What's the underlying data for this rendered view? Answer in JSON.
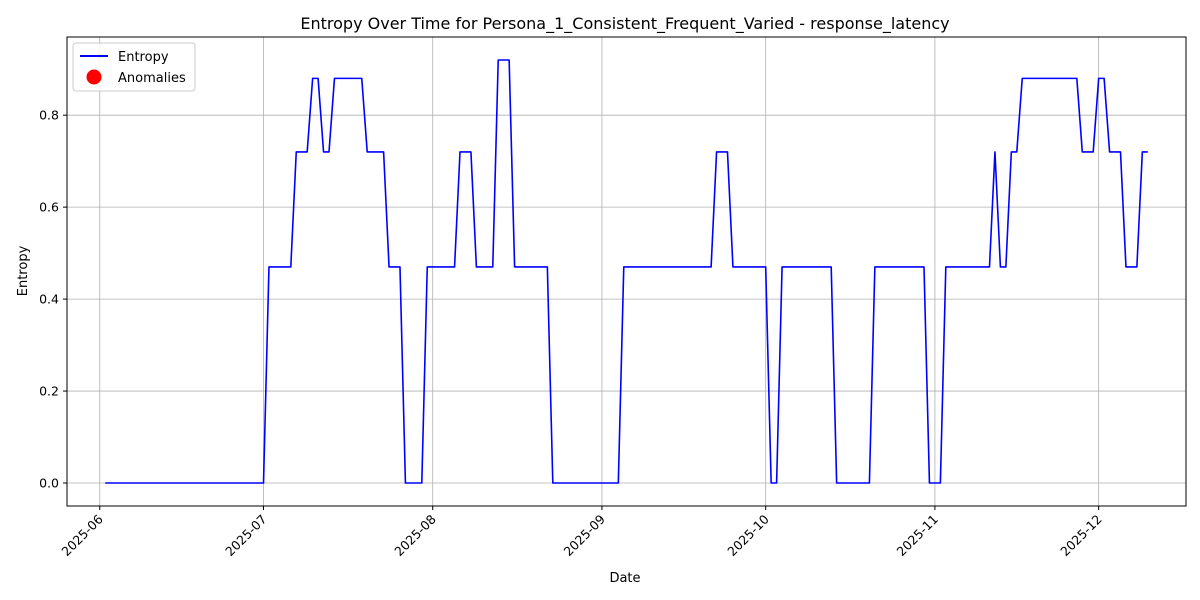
{
  "chart_data": {
    "type": "line",
    "title": "Entropy Over Time for Persona_1_Consistent_Frequent_Varied - response_latency",
    "xlabel": "Date",
    "ylabel": "Entropy",
    "xlim": [
      "2025-05-26",
      "2025-12-17"
    ],
    "ylim": [
      -0.05,
      0.97
    ],
    "x_ticks": [
      "2025-06-01",
      "2025-07-01",
      "2025-08-01",
      "2025-09-01",
      "2025-10-01",
      "2025-11-01",
      "2025-12-01"
    ],
    "x_tick_labels": [
      "2025-06",
      "2025-07",
      "2025-08",
      "2025-09",
      "2025-10",
      "2025-11",
      "2025-12"
    ],
    "y_ticks": [
      0.0,
      0.2,
      0.4,
      0.6,
      0.8
    ],
    "y_tick_labels": [
      "0.0",
      "0.2",
      "0.4",
      "0.6",
      "0.8"
    ],
    "grid": true,
    "legend": {
      "position": "upper-left",
      "entries": [
        {
          "label": "Entropy",
          "marker": "line",
          "color": "#0000ff"
        },
        {
          "label": "Anomalies",
          "marker": "circle",
          "color": "#ff0000"
        }
      ]
    },
    "series": [
      {
        "name": "Entropy",
        "color": "#0000ff",
        "points": [
          [
            "2025-06-02",
            0.0
          ],
          [
            "2025-07-01",
            0.0
          ],
          [
            "2025-07-02",
            0.47
          ],
          [
            "2025-07-06",
            0.47
          ],
          [
            "2025-07-07",
            0.72
          ],
          [
            "2025-07-09",
            0.72
          ],
          [
            "2025-07-10",
            0.88
          ],
          [
            "2025-07-11",
            0.88
          ],
          [
            "2025-07-12",
            0.72
          ],
          [
            "2025-07-13",
            0.72
          ],
          [
            "2025-07-14",
            0.88
          ],
          [
            "2025-07-19",
            0.88
          ],
          [
            "2025-07-20",
            0.72
          ],
          [
            "2025-07-23",
            0.72
          ],
          [
            "2025-07-24",
            0.47
          ],
          [
            "2025-07-26",
            0.47
          ],
          [
            "2025-07-27",
            0.0
          ],
          [
            "2025-07-30",
            0.0
          ],
          [
            "2025-07-31",
            0.47
          ],
          [
            "2025-08-05",
            0.47
          ],
          [
            "2025-08-06",
            0.72
          ],
          [
            "2025-08-08",
            0.72
          ],
          [
            "2025-08-09",
            0.47
          ],
          [
            "2025-08-12",
            0.47
          ],
          [
            "2025-08-13",
            0.92
          ],
          [
            "2025-08-15",
            0.92
          ],
          [
            "2025-08-16",
            0.47
          ],
          [
            "2025-08-22",
            0.47
          ],
          [
            "2025-08-23",
            0.0
          ],
          [
            "2025-09-04",
            0.0
          ],
          [
            "2025-09-05",
            0.47
          ],
          [
            "2025-09-21",
            0.47
          ],
          [
            "2025-09-22",
            0.72
          ],
          [
            "2025-09-24",
            0.72
          ],
          [
            "2025-09-25",
            0.47
          ],
          [
            "2025-10-01",
            0.47
          ],
          [
            "2025-10-02",
            0.0
          ],
          [
            "2025-10-03",
            0.0
          ],
          [
            "2025-10-04",
            0.47
          ],
          [
            "2025-10-13",
            0.47
          ],
          [
            "2025-10-14",
            0.0
          ],
          [
            "2025-10-20",
            0.0
          ],
          [
            "2025-10-21",
            0.47
          ],
          [
            "2025-10-30",
            0.47
          ],
          [
            "2025-10-31",
            0.0
          ],
          [
            "2025-11-02",
            0.0
          ],
          [
            "2025-11-03",
            0.47
          ],
          [
            "2025-11-11",
            0.47
          ],
          [
            "2025-11-12",
            0.72
          ],
          [
            "2025-11-13",
            0.47
          ],
          [
            "2025-11-14",
            0.47
          ],
          [
            "2025-11-15",
            0.72
          ],
          [
            "2025-11-16",
            0.72
          ],
          [
            "2025-11-17",
            0.88
          ],
          [
            "2025-11-27",
            0.88
          ],
          [
            "2025-11-28",
            0.72
          ],
          [
            "2025-11-30",
            0.72
          ],
          [
            "2025-12-01",
            0.88
          ],
          [
            "2025-12-02",
            0.88
          ],
          [
            "2025-12-03",
            0.72
          ],
          [
            "2025-12-05",
            0.72
          ],
          [
            "2025-12-06",
            0.47
          ],
          [
            "2025-12-08",
            0.47
          ],
          [
            "2025-12-09",
            0.72
          ],
          [
            "2025-12-10",
            0.72
          ]
        ]
      },
      {
        "name": "Anomalies",
        "color": "#ff0000",
        "points": []
      }
    ]
  }
}
